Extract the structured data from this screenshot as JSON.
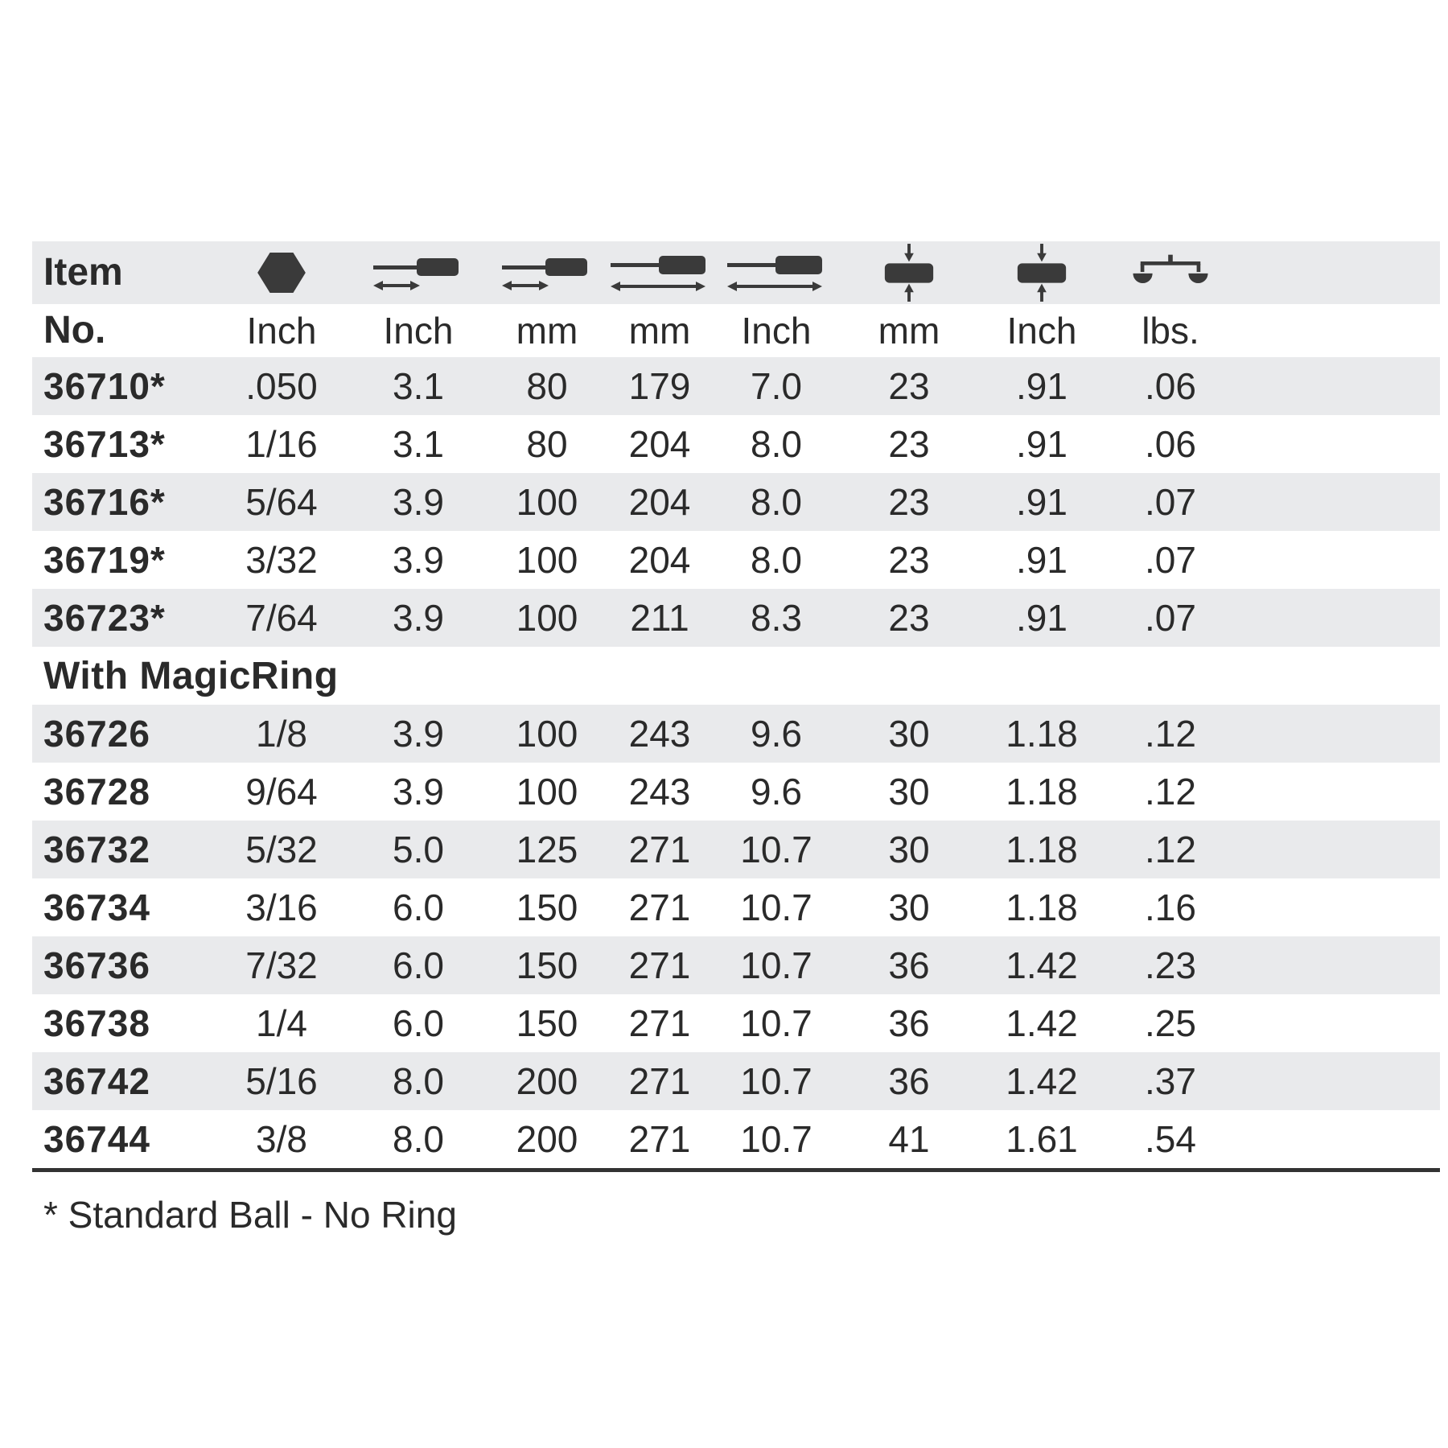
{
  "table": {
    "header": {
      "item_line1": "Item",
      "item_line2": "No."
    },
    "columns": [
      {
        "label": "Item No.",
        "icon": null,
        "unit": ""
      },
      {
        "label": "Hex size",
        "icon": "hex-size-icon",
        "unit": "Inch"
      },
      {
        "label": "Blade length",
        "icon": "blade-length-icon",
        "unit": "Inch"
      },
      {
        "label": "Blade length",
        "icon": "blade-length-icon",
        "unit": "mm"
      },
      {
        "label": "Overall length",
        "icon": "overall-length-icon",
        "unit": "mm"
      },
      {
        "label": "Overall length",
        "icon": "overall-length-icon",
        "unit": "Inch"
      },
      {
        "label": "Handle diameter",
        "icon": "handle-diameter-icon",
        "unit": "mm"
      },
      {
        "label": "Handle diameter",
        "icon": "handle-diameter-icon",
        "unit": "Inch"
      },
      {
        "label": "Weight",
        "icon": "weight-scale-icon",
        "unit": "lbs."
      }
    ],
    "rows": [
      {
        "type": "data",
        "stripe": true,
        "cells": [
          "36710*",
          ".050",
          "3.1",
          "80",
          "179",
          "7.0",
          "23",
          ".91",
          ".06"
        ]
      },
      {
        "type": "data",
        "stripe": false,
        "cells": [
          "36713*",
          "1/16",
          "3.1",
          "80",
          "204",
          "8.0",
          "23",
          ".91",
          ".06"
        ]
      },
      {
        "type": "data",
        "stripe": true,
        "cells": [
          "36716*",
          "5/64",
          "3.9",
          "100",
          "204",
          "8.0",
          "23",
          ".91",
          ".07"
        ]
      },
      {
        "type": "data",
        "stripe": false,
        "cells": [
          "36719*",
          "3/32",
          "3.9",
          "100",
          "204",
          "8.0",
          "23",
          ".91",
          ".07"
        ]
      },
      {
        "type": "data",
        "stripe": true,
        "cells": [
          "36723*",
          "7/64",
          "3.9",
          "100",
          "211",
          "8.3",
          "23",
          ".91",
          ".07"
        ]
      },
      {
        "type": "section",
        "stripe": false,
        "label": "With MagicRing"
      },
      {
        "type": "data",
        "stripe": true,
        "cells": [
          "36726",
          "1/8",
          "3.9",
          "100",
          "243",
          "9.6",
          "30",
          "1.18",
          ".12"
        ]
      },
      {
        "type": "data",
        "stripe": false,
        "cells": [
          "36728",
          "9/64",
          "3.9",
          "100",
          "243",
          "9.6",
          "30",
          "1.18",
          ".12"
        ]
      },
      {
        "type": "data",
        "stripe": true,
        "cells": [
          "36732",
          "5/32",
          "5.0",
          "125",
          "271",
          "10.7",
          "30",
          "1.18",
          ".12"
        ]
      },
      {
        "type": "data",
        "stripe": false,
        "cells": [
          "36734",
          "3/16",
          "6.0",
          "150",
          "271",
          "10.7",
          "30",
          "1.18",
          ".16"
        ]
      },
      {
        "type": "data",
        "stripe": true,
        "cells": [
          "36736",
          "7/32",
          "6.0",
          "150",
          "271",
          "10.7",
          "36",
          "1.42",
          ".23"
        ]
      },
      {
        "type": "data",
        "stripe": false,
        "cells": [
          "36738",
          "1/4",
          "6.0",
          "150",
          "271",
          "10.7",
          "36",
          "1.42",
          ".25"
        ]
      },
      {
        "type": "data",
        "stripe": true,
        "cells": [
          "36742",
          "5/16",
          "8.0",
          "200",
          "271",
          "10.7",
          "36",
          "1.42",
          ".37"
        ]
      },
      {
        "type": "data",
        "stripe": false,
        "cells": [
          "36744",
          "3/8",
          "8.0",
          "200",
          "271",
          "10.7",
          "41",
          "1.61",
          ".54"
        ]
      }
    ],
    "footnote": "* Standard Ball - No Ring"
  },
  "colors": {
    "stripe": "#e9eaec",
    "text": "#2a2a2a",
    "icon": "#3a3a3a",
    "bottom_border": "#333333"
  }
}
